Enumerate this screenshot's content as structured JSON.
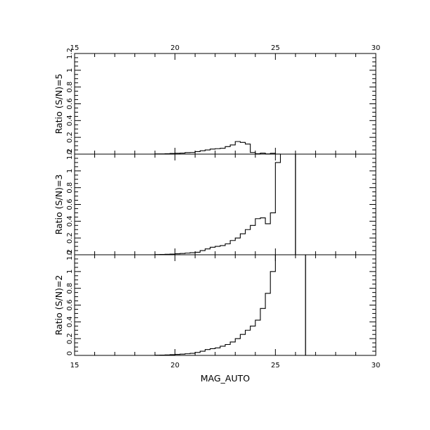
{
  "chart_data": {
    "type": "bar",
    "xlabel": "MAG_AUTO",
    "xlim": [
      15,
      30
    ],
    "ylim": [
      0,
      1.2
    ],
    "x_ticks": [
      "15",
      "20",
      "25",
      "30"
    ],
    "y_ticks": [
      "0.2",
      "0.4",
      "0.6",
      "0.8",
      "1",
      "1.2"
    ],
    "bin_edges": [
      19.0,
      19.25,
      19.5,
      19.75,
      20.0,
      20.25,
      20.5,
      20.75,
      21.0,
      21.25,
      21.5,
      21.75,
      22.0,
      22.25,
      22.5,
      22.75,
      23.0,
      23.25,
      23.5,
      23.75,
      24.0,
      24.25,
      24.5,
      24.75,
      25.0,
      25.25,
      25.5,
      25.75,
      26.0,
      26.25,
      26.5
    ],
    "panels": [
      {
        "ylabel": "Ratio (S/N)=5",
        "bottom_tick": "0",
        "values": [
          0.003,
          0.003,
          0.005,
          0.008,
          0.01,
          0.012,
          0.018,
          0.02,
          0.03,
          0.04,
          0.05,
          0.06,
          0.065,
          0.07,
          0.09,
          0.11,
          0.15,
          0.14,
          0.12,
          0.02,
          0.005,
          0.012,
          0.003,
          0.01,
          0.001,
          0.0,
          0.0,
          0.0,
          0.0,
          0.0
        ],
        "vline": null
      },
      {
        "ylabel": "Ratio (S/N)=3",
        "bottom_tick": "0",
        "values": [
          0.003,
          0.004,
          0.006,
          0.008,
          0.012,
          0.015,
          0.02,
          0.025,
          0.03,
          0.05,
          0.07,
          0.09,
          0.1,
          0.11,
          0.13,
          0.17,
          0.2,
          0.25,
          0.3,
          0.35,
          0.43,
          0.44,
          0.37,
          0.5,
          1.1,
          1.2,
          1.2,
          1.2,
          0.0,
          0.0
        ],
        "vline": 26.0
      },
      {
        "ylabel": "Ratio (S/N)=2",
        "bottom_tick": "0",
        "values": [
          0.003,
          0.004,
          0.006,
          0.009,
          0.012,
          0.015,
          0.02,
          0.025,
          0.035,
          0.05,
          0.07,
          0.08,
          0.09,
          0.11,
          0.13,
          0.16,
          0.2,
          0.25,
          0.3,
          0.35,
          0.42,
          0.56,
          0.74,
          1.0,
          1.2,
          1.2,
          1.2,
          1.2,
          1.2,
          1.2
        ],
        "vline": 26.5
      }
    ]
  }
}
